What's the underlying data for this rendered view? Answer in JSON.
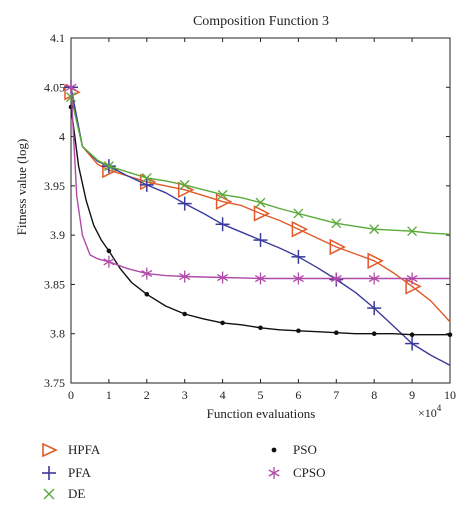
{
  "chart_data": {
    "type": "line",
    "title": "Composition Function 3",
    "xlabel": "Function evaluations",
    "ylabel": "Fitness value (log)",
    "x_multiplier_label": "×10",
    "x_multiplier_exp": "4",
    "xlim": [
      0,
      10
    ],
    "ylim": [
      3.75,
      4.1
    ],
    "xticks": [
      "0",
      "1",
      "2",
      "3",
      "4",
      "5",
      "6",
      "7",
      "8",
      "9",
      "10"
    ],
    "yticks": [
      "3.75",
      "3.8",
      "3.85",
      "3.9",
      "3.95",
      "4",
      "4.05",
      "4.1"
    ],
    "grid": false,
    "legend_position": "bottom",
    "series": [
      {
        "name": "HPFA",
        "color": "#e05a2a",
        "marker": "triangle-right",
        "x": [
          0,
          0.3,
          0.7,
          1,
          1.5,
          2,
          2.5,
          3,
          3.5,
          4,
          4.5,
          5,
          5.5,
          6,
          6.5,
          7,
          7.5,
          8,
          8.5,
          9,
          9.5,
          10
        ],
        "y": [
          4.045,
          3.99,
          3.972,
          3.966,
          3.96,
          3.954,
          3.95,
          3.946,
          3.94,
          3.934,
          3.93,
          3.922,
          3.915,
          3.906,
          3.897,
          3.888,
          3.881,
          3.874,
          3.862,
          3.848,
          3.833,
          3.812
        ],
        "marker_x": [
          0,
          1,
          2,
          3,
          4,
          5,
          6,
          7,
          8,
          9
        ],
        "marker_y": [
          4.045,
          3.966,
          3.954,
          3.946,
          3.934,
          3.922,
          3.906,
          3.888,
          3.874,
          3.848
        ]
      },
      {
        "name": "PFA",
        "color": "#3b3b9c",
        "marker": "plus",
        "x": [
          0,
          0.3,
          0.7,
          1,
          1.5,
          2,
          2.5,
          3,
          3.5,
          4,
          4.5,
          5,
          5.5,
          6,
          6.5,
          7,
          7.5,
          8,
          8.5,
          9,
          9.5,
          10
        ],
        "y": [
          4.05,
          3.99,
          3.975,
          3.97,
          3.96,
          3.951,
          3.943,
          3.932,
          3.922,
          3.911,
          3.903,
          3.895,
          3.887,
          3.878,
          3.867,
          3.855,
          3.842,
          3.826,
          3.808,
          3.79,
          3.778,
          3.768
        ],
        "marker_x": [
          0,
          1,
          2,
          3,
          4,
          5,
          6,
          7,
          8,
          9
        ],
        "marker_y": [
          4.05,
          3.97,
          3.951,
          3.932,
          3.911,
          3.895,
          3.878,
          3.855,
          3.826,
          3.79
        ]
      },
      {
        "name": "DE",
        "color": "#5aaa3a",
        "marker": "x",
        "x": [
          0,
          0.3,
          0.7,
          1,
          1.5,
          2,
          2.5,
          3,
          3.5,
          4,
          4.5,
          5,
          5.5,
          6,
          6.5,
          7,
          7.5,
          8,
          8.5,
          9,
          9.5,
          10
        ],
        "y": [
          4.04,
          3.99,
          3.976,
          3.97,
          3.964,
          3.958,
          3.955,
          3.951,
          3.946,
          3.941,
          3.938,
          3.933,
          3.927,
          3.922,
          3.917,
          3.912,
          3.909,
          3.906,
          3.905,
          3.904,
          3.902,
          3.901
        ],
        "marker_x": [
          0,
          1,
          2,
          3,
          4,
          5,
          6,
          7,
          8,
          9
        ],
        "marker_y": [
          4.04,
          3.97,
          3.958,
          3.951,
          3.941,
          3.933,
          3.922,
          3.912,
          3.906,
          3.904
        ]
      },
      {
        "name": "PSO",
        "color": "#111111",
        "marker": "dot",
        "x": [
          0,
          0.2,
          0.4,
          0.6,
          0.8,
          1,
          1.3,
          1.6,
          2,
          2.5,
          3,
          3.5,
          4,
          4.5,
          5,
          5.5,
          6,
          6.5,
          7,
          7.5,
          8,
          8.5,
          9,
          9.5,
          10
        ],
        "y": [
          4.03,
          3.97,
          3.935,
          3.91,
          3.895,
          3.884,
          3.866,
          3.852,
          3.84,
          3.828,
          3.82,
          3.815,
          3.811,
          3.809,
          3.806,
          3.804,
          3.803,
          3.802,
          3.801,
          3.8,
          3.8,
          3.8,
          3.799,
          3.799,
          3.799
        ],
        "marker_x": [
          0,
          1,
          2,
          3,
          4,
          5,
          6,
          7,
          8,
          9,
          10
        ],
        "marker_y": [
          4.03,
          3.884,
          3.84,
          3.82,
          3.811,
          3.806,
          3.803,
          3.801,
          3.8,
          3.799,
          3.799
        ]
      },
      {
        "name": "CPSO",
        "color": "#b04aa8",
        "marker": "asterisk",
        "x": [
          0,
          0.15,
          0.3,
          0.5,
          0.7,
          1,
          1.5,
          2,
          2.5,
          3,
          4,
          5,
          6,
          7,
          8,
          9,
          10
        ],
        "y": [
          4.05,
          3.94,
          3.9,
          3.88,
          3.876,
          3.873,
          3.866,
          3.861,
          3.859,
          3.858,
          3.857,
          3.856,
          3.856,
          3.856,
          3.856,
          3.856,
          3.856
        ],
        "marker_x": [
          0,
          1,
          2,
          3,
          4,
          5,
          6,
          7,
          8,
          9
        ],
        "marker_y": [
          4.05,
          3.873,
          3.861,
          3.858,
          3.857,
          3.856,
          3.856,
          3.856,
          3.856,
          3.856
        ]
      }
    ]
  }
}
